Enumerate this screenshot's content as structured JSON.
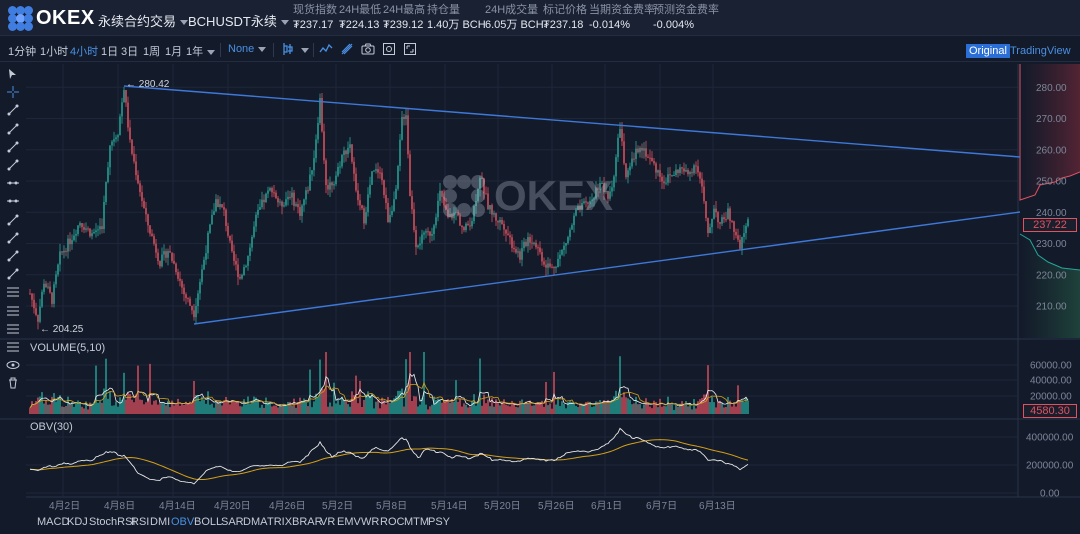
{
  "header": {
    "brand": "OKEX",
    "product_select": "永续合约交易",
    "symbol_select": "BCHUSDT永续",
    "stats": [
      {
        "key": "现货指数",
        "value": "₮237.17"
      },
      {
        "key": "24H最低",
        "value": "₮224.13"
      },
      {
        "key": "24H最高",
        "value": "₮239.12"
      },
      {
        "key": "持仓量",
        "value": "1.40万 BCH"
      },
      {
        "key": "24H成交量",
        "value": "6.05万 BCH"
      },
      {
        "key": "标记价格",
        "value": "₮237.18"
      },
      {
        "key": "当期资金费率",
        "value": "-0.014%"
      },
      {
        "key": "预测资金费率",
        "value": "-0.004%"
      }
    ]
  },
  "toolbar": {
    "intervals": [
      "1分钟",
      "1小时",
      "4小时",
      "1日",
      "3日",
      "1周",
      "1月",
      "1年"
    ],
    "active_interval": "4小时",
    "style_select": "None",
    "view_modes": [
      "Original",
      "TradingView"
    ],
    "active_view": "Original"
  },
  "price_axis": {
    "ticks": [
      "280.00",
      "270.00",
      "260.00",
      "250.00",
      "240.00",
      "230.00",
      "220.00",
      "210.00"
    ],
    "current_price": "237.22"
  },
  "annotations": {
    "high": "← 280.42",
    "low": "← 204.25"
  },
  "watermark": "OKEX",
  "volume_pane": {
    "title": "VOLUME(5,10)",
    "ticks": [
      "60000.00",
      "40000.00",
      "20000.00"
    ],
    "current": "4580.30"
  },
  "obv_pane": {
    "title": "OBV(30)",
    "ticks": [
      "400000.00",
      "200000.00",
      "0.00"
    ]
  },
  "time_axis": [
    "4月2日",
    "4月8日",
    "4月14日",
    "4月20日",
    "4月26日",
    "5月2日",
    "5月8日",
    "5月14日",
    "5月20日",
    "5月26日",
    "6月1日",
    "6月7日",
    "6月13日"
  ],
  "indicators": [
    "MACD",
    "KDJ",
    "StochRSI",
    "RSI",
    "DMI",
    "OBV",
    "BOLL",
    "SAR",
    "DMA",
    "TRIX",
    "BRAR",
    "VR",
    "EMV",
    "WR",
    "ROC",
    "MTM",
    "PSY"
  ],
  "active_indicator": "OBV",
  "colors": {
    "up": "#26a69a",
    "down": "#e05260",
    "trend": "#3e78d8",
    "ma": "#d4a017",
    "obv": "#e8e8e8",
    "bg": "#131a2a"
  },
  "left_tools": [
    "cursor-icon",
    "crosshair-icon",
    "trend-line-icon",
    "ray-icon",
    "extended-line-icon",
    "segment-icon",
    "horizontal-line-icon",
    "horizontal-ray-icon",
    "parallel-channel-icon",
    "vertical-line-icon",
    "price-range-icon",
    "pitchfork-icon",
    "fibonacci-icon",
    "fib-fan-icon",
    "gann-icon",
    "measure-icon",
    "eye-icon",
    "trash-icon"
  ]
}
